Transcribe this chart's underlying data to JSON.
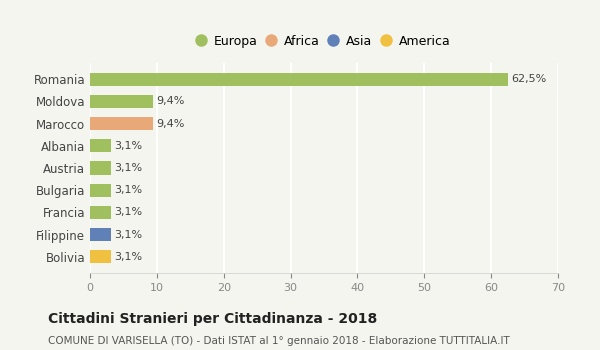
{
  "categories": [
    "Bolivia",
    "Filippine",
    "Francia",
    "Bulgaria",
    "Austria",
    "Albania",
    "Marocco",
    "Moldova",
    "Romania"
  ],
  "values": [
    3.1,
    3.1,
    3.1,
    3.1,
    3.1,
    3.1,
    9.4,
    9.4,
    62.5
  ],
  "labels": [
    "3,1%",
    "3,1%",
    "3,1%",
    "3,1%",
    "3,1%",
    "3,1%",
    "9,4%",
    "9,4%",
    "62,5%"
  ],
  "colors": [
    "#f0c040",
    "#6080b8",
    "#a0c060",
    "#a0c060",
    "#a0c060",
    "#a0c060",
    "#e8a878",
    "#a0c060",
    "#a0c060"
  ],
  "continent_colors": {
    "Europa": "#a0c060",
    "Africa": "#e8a878",
    "Asia": "#6080b8",
    "America": "#f0c040"
  },
  "legend_labels": [
    "Europa",
    "Africa",
    "Asia",
    "America"
  ],
  "xlim": [
    0,
    70
  ],
  "xticks": [
    0,
    10,
    20,
    30,
    40,
    50,
    60,
    70
  ],
  "title": "Cittadini Stranieri per Cittadinanza - 2018",
  "subtitle": "COMUNE DI VARISELLA (TO) - Dati ISTAT al 1° gennaio 2018 - Elaborazione TUTTITALIA.IT",
  "background_color": "#f5f5f0",
  "grid_color": "#ffffff",
  "bar_height": 0.6
}
